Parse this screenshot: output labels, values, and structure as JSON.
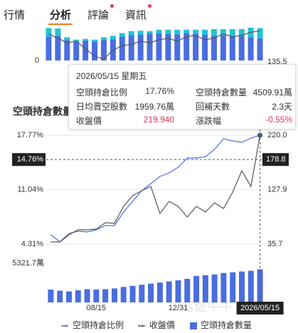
{
  "tabs": [
    {
      "label": "行情"
    },
    {
      "label": "分析",
      "active": true
    },
    {
      "label": "評論",
      "badge": true
    },
    {
      "label": "資訊",
      "badge": true
    }
  ],
  "tooltip": {
    "date": "2026/05/15 星期五",
    "rows": [
      [
        {
          "label": "空頭持倉比例",
          "value": "17.76%"
        },
        {
          "label": "空頭持倉數量",
          "value": "4509.91萬"
        }
      ],
      [
        {
          "label": "日均賣空股數",
          "value": "1959.76萬"
        },
        {
          "label": "回補天數",
          "value": "2.3天"
        }
      ],
      [
        {
          "label": "收盤價",
          "value": "219.940",
          "color": "#e8364c"
        },
        {
          "label": "漲跌幅",
          "value": "-0.55%",
          "color": "#e8364c"
        }
      ]
    ]
  },
  "chart_data": [
    {
      "type": "bar",
      "categories": [
        null,
        null,
        null,
        null,
        null,
        null,
        null,
        null,
        null,
        null,
        null,
        null,
        null,
        null,
        null,
        null,
        null,
        null,
        null,
        null,
        null,
        null,
        null,
        null
      ],
      "series": [
        {
          "type": "bar",
          "color": "#4a6ee0",
          "values": [
            70,
            72,
            60,
            55,
            58,
            55,
            60,
            62,
            70,
            74,
            75,
            78,
            80,
            78,
            76,
            80,
            78,
            75,
            72,
            74,
            70,
            72,
            68,
            65
          ]
        },
        {
          "type": "bar",
          "color": "#22c3d3",
          "values": [
            25,
            22,
            8,
            6,
            5,
            6,
            8,
            10,
            10,
            12,
            12,
            8,
            10,
            12,
            14,
            10,
            12,
            15,
            20,
            18,
            22,
            20,
            28,
            30
          ]
        },
        {
          "type": "line",
          "axis": "y2",
          "color": "#555555",
          "values": [
            224,
            210,
            195,
            200,
            175,
            150,
            140,
            170,
            185,
            190,
            200,
            195,
            205,
            210,
            200,
            215,
            220,
            205,
            210,
            225,
            215,
            220,
            230,
            235
          ]
        }
      ],
      "ylim": [
        0,
        100
      ],
      "yticks": [
        0
      ],
      "y2lim": [
        135.5,
        250
      ],
      "y2ticks": [
        135.5
      ]
    },
    {
      "type": "combo",
      "title": "空頭持倉數量",
      "categories": [
        null,
        null,
        null,
        null,
        null,
        "08/15",
        null,
        null,
        null,
        null,
        null,
        null,
        null,
        null,
        "12/31",
        null,
        null,
        null,
        null,
        null,
        null,
        null,
        null,
        "2026/05/15"
      ],
      "series": [
        {
          "name": "空頭持倉比例",
          "type": "line",
          "color": "#4a6ee0",
          "values": [
            5.45,
            4.57,
            5.63,
            5.89,
            5.81,
            6.07,
            6.6,
            6.6,
            8.27,
            9.59,
            10.91,
            11.79,
            12.67,
            13.11,
            13.81,
            14.95,
            14.95,
            15.12,
            16.01,
            17.33,
            17.06,
            16.89,
            17.42,
            17.76
          ]
        },
        {
          "name": "收盤價",
          "type": "line",
          "axis": "y2",
          "color": "#555555",
          "values": [
            39.3,
            39.3,
            51.4,
            59.8,
            59.8,
            61,
            71.8,
            70.6,
            99.5,
            117.6,
            126,
            133.3,
            87.5,
            108,
            99.5,
            81.5,
            99.5,
            89.9,
            105.6,
            95.9,
            123.6,
            159.8,
            133.3,
            219.94
          ]
        },
        {
          "name": "空頭持倉數量",
          "type": "bar",
          "axis": "y3",
          "color": "#4a6ee0",
          "values": [
            1740,
            1600,
            1500,
            1650,
            1800,
            1750,
            1800,
            1900,
            2100,
            2250,
            2400,
            2550,
            2700,
            2850,
            3000,
            3200,
            3600,
            3700,
            3800,
            4000,
            4100,
            4200,
            4300,
            4509.91
          ]
        }
      ],
      "ylim": [
        4.31,
        17.77
      ],
      "yticks": [
        {
          "value": 4.31,
          "label": "4.31%"
        },
        {
          "value": 11.04,
          "label": "11.04%"
        },
        {
          "value": 17.77,
          "label": "17.77%"
        }
      ],
      "y2lim": [
        35.7,
        220.0
      ],
      "y2ticks": [
        35.7,
        127.9,
        {
          "value": 220,
          "label": "220.0"
        }
      ],
      "y3lim": [
        0,
        5321.7
      ],
      "y3ticks": [
        {
          "value": 5321.7,
          "label": "5321.7萬"
        }
      ],
      "grid": true,
      "crosshair": {
        "index": 23,
        "y": {
          "value": 14.76,
          "label": "14.76%"
        },
        "y2": 178.8
      },
      "watermark": "富途牛牛"
    }
  ]
}
